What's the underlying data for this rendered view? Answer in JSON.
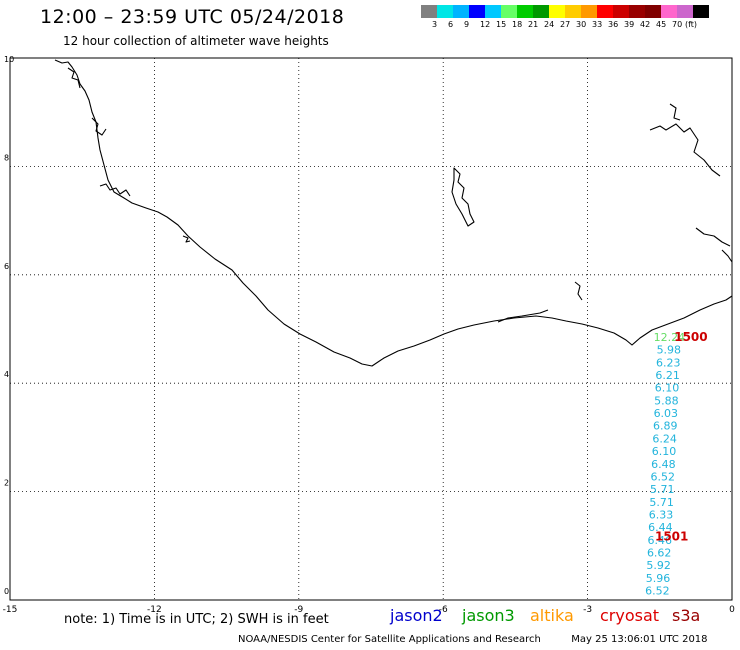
{
  "header": {
    "title": "12:00 – 23:59 UTC 05/24/2018",
    "subtitle": "12 hour collection of altimeter wave heights"
  },
  "color_scale": {
    "colors": [
      "#808080",
      "#00e6e6",
      "#00b4ff",
      "#0000ff",
      "#00c8ff",
      "#66ff66",
      "#00cc00",
      "#009900",
      "#ffff00",
      "#ffcc00",
      "#ff9900",
      "#ff0000",
      "#cc0000",
      "#990000",
      "#800000",
      "#ff66cc",
      "#cc66cc",
      "#000000"
    ],
    "labels": [
      "3",
      "6",
      "9",
      "12",
      "15",
      "18",
      "21",
      "24",
      "27",
      "30",
      "33",
      "36",
      "39",
      "42",
      "45",
      "70",
      "(ft)"
    ]
  },
  "map": {
    "x_ticks": [
      "-15",
      "-12",
      "-9",
      "-6",
      "-3",
      "0"
    ],
    "y_ticks": [
      "0",
      "2",
      "4",
      "6",
      "8",
      "10"
    ]
  },
  "track": {
    "satellite": "jason3",
    "values": [
      "12.24",
      "5.98",
      "6.23",
      "6.21",
      "6.10",
      "5.88",
      "6.03",
      "6.89",
      "6.24",
      "6.10",
      "6.48",
      "6.52",
      "5.71",
      "5.71",
      "6.33",
      "6.44",
      "6.46",
      "6.62",
      "5.92",
      "5.96",
      "6.52"
    ],
    "time_labels": [
      {
        "text": "1500",
        "lon": -1.2,
        "lat": 4.78
      },
      {
        "text": "1501",
        "lon": -1.6,
        "lat": 1.1
      }
    ]
  },
  "notes": {
    "note": "note: 1) Time is in UTC; 2) SWH is in feet"
  },
  "satellites": [
    {
      "name": "jason2",
      "color": "#0000cc"
    },
    {
      "name": "jason3",
      "color": "#009900"
    },
    {
      "name": "altika",
      "color": "#ff9900"
    },
    {
      "name": "cryosat",
      "color": "#dd0000"
    },
    {
      "name": "s3a",
      "color": "#990000"
    }
  ],
  "footer": {
    "credit": "NOAA/NESDIS Center for Satellite Applications and Research",
    "timestamp": "May 25 13:06:01 UTC 2018"
  }
}
